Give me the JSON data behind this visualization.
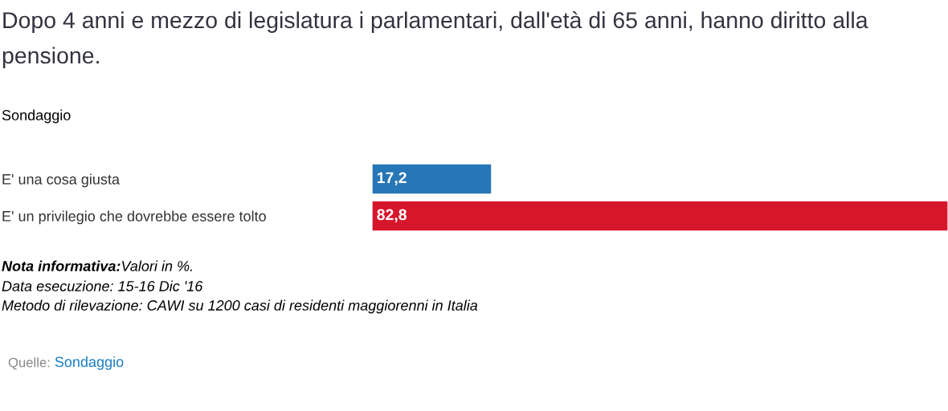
{
  "chart_data": {
    "type": "bar",
    "orientation": "horizontal",
    "title": "Dopo 4 anni e mezzo di legislatura i parlamentari, dall'età di 65 anni, hanno diritto alla pensione.",
    "subtitle": "Sondaggio",
    "categories": [
      "E' una cosa giusta",
      "E' un privilegio che dovrebbe essere tolto"
    ],
    "values": [
      17.2,
      82.8
    ],
    "colors": [
      "#2776b6",
      "#d6162b"
    ],
    "value_labels": [
      "17,2",
      "82,8"
    ],
    "annotations": [
      "Nota informativa:",
      "Valori in %.",
      "Data esecuzione: 15-16 Dic '16",
      "Metodo di rilevazione: CAWI su 1200 casi di residenti maggiorenni in Italia",
      "Quelle:",
      "Sondaggio"
    ]
  }
}
